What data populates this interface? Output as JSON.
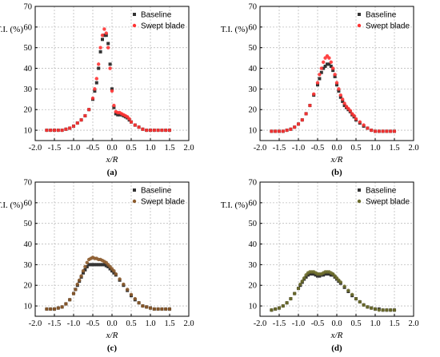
{
  "chart_data": [
    {
      "type": "scatter",
      "panel_label": "(a)",
      "xlabel": "x/R",
      "ylabel": "T.I. (%)",
      "xlim": [
        -2.0,
        2.0
      ],
      "ylim": [
        5,
        70
      ],
      "xticks": [
        "-2.0",
        "-1.5",
        "-1.0",
        "-0.5",
        "0.0",
        "0.5",
        "1.0",
        "1.5",
        "2.0"
      ],
      "yticks": [
        "10",
        "20",
        "30",
        "40",
        "50",
        "60",
        "70"
      ],
      "grid": true,
      "legend_position": "top-right",
      "series": [
        {
          "name": "Baseline",
          "marker": "square",
          "color": "#333333",
          "x": [
            -1.7,
            -1.6,
            -1.5,
            -1.4,
            -1.3,
            -1.2,
            -1.1,
            -1.0,
            -0.9,
            -0.8,
            -0.7,
            -0.6,
            -0.5,
            -0.45,
            -0.4,
            -0.35,
            -0.3,
            -0.25,
            -0.2,
            -0.15,
            -0.1,
            -0.05,
            0.0,
            0.05,
            0.1,
            0.15,
            0.2,
            0.25,
            0.3,
            0.35,
            0.4,
            0.45,
            0.5,
            0.6,
            0.7,
            0.8,
            0.9,
            1.0,
            1.1,
            1.2,
            1.3,
            1.4,
            1.5
          ],
          "y": [
            10,
            10,
            10,
            10,
            10,
            10.5,
            11,
            12,
            13.5,
            15,
            17,
            20,
            25,
            29,
            33,
            40,
            48,
            54,
            56,
            56,
            52,
            42,
            30,
            21,
            18,
            17.5,
            17.5,
            17.5,
            17,
            16.5,
            16,
            15,
            14,
            12.5,
            11.5,
            10.5,
            10,
            10,
            10,
            10,
            10,
            10,
            10
          ]
        },
        {
          "name": "Swept blade",
          "marker": "circle",
          "color": "#ff3333",
          "x": [
            -1.7,
            -1.6,
            -1.5,
            -1.4,
            -1.3,
            -1.2,
            -1.1,
            -1.0,
            -0.9,
            -0.8,
            -0.7,
            -0.6,
            -0.5,
            -0.45,
            -0.4,
            -0.35,
            -0.3,
            -0.25,
            -0.2,
            -0.15,
            -0.1,
            -0.05,
            0.0,
            0.05,
            0.1,
            0.15,
            0.2,
            0.25,
            0.3,
            0.35,
            0.4,
            0.45,
            0.5,
            0.6,
            0.7,
            0.8,
            0.9,
            1.0,
            1.1,
            1.2,
            1.3,
            1.4,
            1.5
          ],
          "y": [
            10,
            10,
            10,
            10,
            10,
            10.5,
            11,
            12,
            13.5,
            15,
            17,
            20,
            25.5,
            30,
            35,
            42,
            50,
            56,
            59,
            57,
            50,
            40,
            29,
            22,
            19,
            18.5,
            18.5,
            18,
            17.5,
            17,
            16.5,
            15.5,
            14,
            12.5,
            11.5,
            10.5,
            10,
            10,
            10,
            10,
            10,
            10,
            10
          ]
        }
      ]
    },
    {
      "type": "scatter",
      "panel_label": "(b)",
      "xlabel": "x/R",
      "ylabel": "T.I. (%)",
      "xlim": [
        -2.0,
        2.0
      ],
      "ylim": [
        5,
        70
      ],
      "xticks": [
        "-2.0",
        "-1.5",
        "-1.0",
        "-0.5",
        "0.0",
        "0.5",
        "1.0",
        "1.5",
        "2.0"
      ],
      "yticks": [
        "10",
        "20",
        "30",
        "40",
        "50",
        "60",
        "70"
      ],
      "grid": true,
      "legend_position": "top-right",
      "series": [
        {
          "name": "Baseline",
          "marker": "square",
          "color": "#333333",
          "x": [
            -1.7,
            -1.6,
            -1.5,
            -1.4,
            -1.3,
            -1.2,
            -1.1,
            -1.0,
            -0.9,
            -0.8,
            -0.7,
            -0.6,
            -0.5,
            -0.45,
            -0.4,
            -0.35,
            -0.3,
            -0.25,
            -0.2,
            -0.15,
            -0.1,
            -0.05,
            0.0,
            0.05,
            0.1,
            0.15,
            0.2,
            0.25,
            0.3,
            0.35,
            0.4,
            0.45,
            0.5,
            0.6,
            0.7,
            0.8,
            0.9,
            1.0,
            1.1,
            1.2,
            1.3,
            1.4,
            1.5
          ],
          "y": [
            9.5,
            9.5,
            9.5,
            9.5,
            10,
            10.5,
            11.5,
            13,
            15,
            18,
            22,
            27,
            32,
            35,
            38,
            40,
            41,
            42,
            42,
            41,
            39,
            36,
            32,
            29,
            26,
            24,
            22,
            21,
            20,
            19,
            17.5,
            16.5,
            15,
            13.5,
            12,
            11,
            10,
            9.5,
            9.5,
            9.5,
            9.5,
            9.5,
            9.5
          ]
        },
        {
          "name": "Swept blade",
          "marker": "circle",
          "color": "#ff3333",
          "x": [
            -1.7,
            -1.6,
            -1.5,
            -1.4,
            -1.3,
            -1.2,
            -1.1,
            -1.0,
            -0.9,
            -0.8,
            -0.7,
            -0.6,
            -0.5,
            -0.45,
            -0.4,
            -0.35,
            -0.3,
            -0.25,
            -0.2,
            -0.15,
            -0.1,
            -0.05,
            0.0,
            0.05,
            0.1,
            0.15,
            0.2,
            0.25,
            0.3,
            0.35,
            0.4,
            0.45,
            0.5,
            0.6,
            0.7,
            0.8,
            0.9,
            1.0,
            1.1,
            1.2,
            1.3,
            1.4,
            1.5
          ],
          "y": [
            9.5,
            9.5,
            9.5,
            9.5,
            10,
            10.5,
            11.5,
            13,
            15,
            18,
            22,
            27.5,
            33,
            37,
            40,
            43,
            45,
            46,
            45,
            43,
            40,
            37,
            33,
            30,
            27,
            25,
            23,
            21.5,
            20.5,
            19.5,
            18,
            17,
            15.5,
            14,
            12.5,
            11,
            10,
            9.5,
            9.5,
            9.5,
            9.5,
            9.5,
            9.5
          ]
        }
      ]
    },
    {
      "type": "scatter",
      "panel_label": "(c)",
      "xlabel": "x/R",
      "ylabel": "T.I. (%)",
      "xlim": [
        -2.0,
        2.0
      ],
      "ylim": [
        5,
        70
      ],
      "xticks": [
        "-2.0",
        "-1.5",
        "-1.0",
        "-0.5",
        "0.0",
        "0.5",
        "1.0",
        "1.5",
        "2.0"
      ],
      "yticks": [
        "10",
        "20",
        "30",
        "40",
        "50",
        "60",
        "70"
      ],
      "grid": true,
      "legend_position": "top-right",
      "series": [
        {
          "name": "Baseline",
          "marker": "square",
          "color": "#333333",
          "x": [
            -1.7,
            -1.6,
            -1.5,
            -1.4,
            -1.3,
            -1.2,
            -1.1,
            -1.0,
            -0.95,
            -0.9,
            -0.85,
            -0.8,
            -0.75,
            -0.7,
            -0.65,
            -0.6,
            -0.55,
            -0.5,
            -0.45,
            -0.4,
            -0.35,
            -0.3,
            -0.25,
            -0.2,
            -0.15,
            -0.1,
            -0.05,
            0.0,
            0.05,
            0.1,
            0.2,
            0.3,
            0.4,
            0.5,
            0.6,
            0.7,
            0.8,
            0.9,
            1.0,
            1.1,
            1.2,
            1.3,
            1.4,
            1.5
          ],
          "y": [
            8.5,
            8.5,
            8.5,
            9,
            9.5,
            11,
            13,
            16,
            18,
            20,
            22,
            24,
            26,
            27.5,
            29,
            30,
            30,
            30,
            30,
            30,
            30,
            30,
            30,
            30,
            29.5,
            29,
            28,
            27,
            26,
            25,
            22.5,
            20,
            17.5,
            15,
            13,
            11.5,
            10,
            9.5,
            9,
            8.5,
            8.5,
            8.5,
            8.5,
            8.5
          ]
        },
        {
          "name": "Swept blade",
          "marker": "circle",
          "color": "#8b5a2b",
          "x": [
            -1.7,
            -1.6,
            -1.5,
            -1.4,
            -1.3,
            -1.2,
            -1.1,
            -1.0,
            -0.95,
            -0.9,
            -0.85,
            -0.8,
            -0.75,
            -0.7,
            -0.65,
            -0.6,
            -0.55,
            -0.5,
            -0.45,
            -0.4,
            -0.35,
            -0.3,
            -0.25,
            -0.2,
            -0.15,
            -0.1,
            -0.05,
            0.0,
            0.05,
            0.1,
            0.2,
            0.3,
            0.4,
            0.5,
            0.6,
            0.7,
            0.8,
            0.9,
            1.0,
            1.1,
            1.2,
            1.3,
            1.4,
            1.5
          ],
          "y": [
            8.5,
            8.5,
            8.5,
            9,
            9.5,
            11,
            13,
            16,
            18,
            20.5,
            22.5,
            24.5,
            27,
            29,
            31,
            32.5,
            33,
            33.5,
            33,
            33,
            32.5,
            32.5,
            32,
            31.5,
            31,
            30,
            29,
            28,
            27,
            25.5,
            23,
            20.5,
            18,
            15.5,
            13.5,
            11.5,
            10,
            9.5,
            9,
            8.5,
            8.5,
            8.5,
            8.5,
            8.5
          ]
        }
      ]
    },
    {
      "type": "scatter",
      "panel_label": "(d)",
      "xlabel": "x/R",
      "ylabel": "T.I. (%)",
      "xlim": [
        -2.0,
        2.0
      ],
      "ylim": [
        5,
        70
      ],
      "xticks": [
        "-2.0",
        "-1.5",
        "-1.0",
        "-0.5",
        "0.0",
        "0.5",
        "1.0",
        "1.5",
        "2.0"
      ],
      "yticks": [
        "10",
        "20",
        "30",
        "40",
        "50",
        "60",
        "70"
      ],
      "grid": true,
      "legend_position": "top-right",
      "series": [
        {
          "name": "Baseline",
          "marker": "square",
          "color": "#333333",
          "x": [
            -1.7,
            -1.6,
            -1.5,
            -1.4,
            -1.3,
            -1.2,
            -1.1,
            -1.0,
            -0.95,
            -0.9,
            -0.85,
            -0.8,
            -0.75,
            -0.7,
            -0.65,
            -0.6,
            -0.55,
            -0.5,
            -0.45,
            -0.4,
            -0.35,
            -0.3,
            -0.25,
            -0.2,
            -0.15,
            -0.1,
            -0.05,
            0.0,
            0.05,
            0.1,
            0.2,
            0.3,
            0.4,
            0.5,
            0.6,
            0.7,
            0.8,
            0.9,
            1.0,
            1.1,
            1.2,
            1.3,
            1.4,
            1.5
          ],
          "y": [
            8,
            8.5,
            9,
            10,
            11.5,
            13.5,
            16,
            18.5,
            20,
            21.5,
            23,
            24,
            25,
            25.5,
            25.5,
            25.5,
            25,
            24.5,
            24.5,
            25,
            25,
            25.5,
            25.5,
            25.5,
            25,
            25,
            24,
            23,
            22,
            21,
            19,
            17,
            15,
            13.5,
            12,
            10.5,
            9.5,
            9,
            8.5,
            8.5,
            8,
            8,
            8,
            8
          ]
        },
        {
          "name": "Swept blade",
          "marker": "circle",
          "color": "#6b6b2b",
          "x": [
            -1.7,
            -1.6,
            -1.5,
            -1.4,
            -1.3,
            -1.2,
            -1.1,
            -1.0,
            -0.95,
            -0.9,
            -0.85,
            -0.8,
            -0.75,
            -0.7,
            -0.65,
            -0.6,
            -0.55,
            -0.5,
            -0.45,
            -0.4,
            -0.35,
            -0.3,
            -0.25,
            -0.2,
            -0.15,
            -0.1,
            -0.05,
            0.0,
            0.05,
            0.1,
            0.2,
            0.3,
            0.4,
            0.5,
            0.6,
            0.7,
            0.8,
            0.9,
            1.0,
            1.1,
            1.2,
            1.3,
            1.4,
            1.5
          ],
          "y": [
            8,
            8.5,
            9,
            10,
            11.5,
            13.5,
            16,
            18.5,
            20.5,
            22,
            23.5,
            25,
            26,
            26.5,
            26.5,
            26.5,
            26,
            25.5,
            25.5,
            25.5,
            26,
            26.5,
            26.5,
            26.5,
            26,
            25.5,
            24.5,
            23.5,
            22.5,
            21.5,
            19.5,
            17.5,
            15.5,
            13.5,
            12,
            10.5,
            9.5,
            9,
            8.5,
            8,
            8,
            8,
            8,
            8
          ]
        }
      ]
    }
  ]
}
